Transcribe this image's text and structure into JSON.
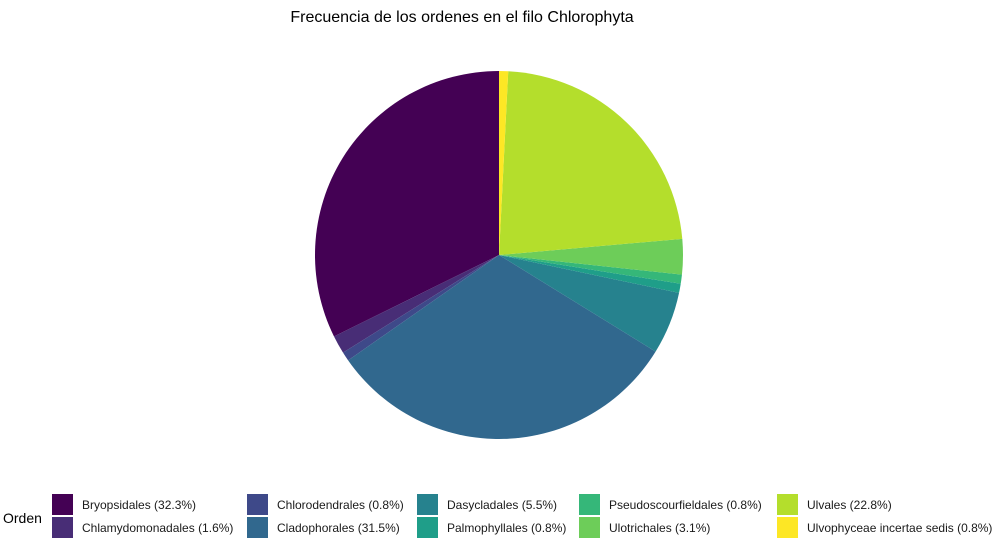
{
  "chart_data": {
    "type": "pie",
    "title": "Frecuencia de los ordenes en el filo Chlorophyta",
    "legend_title": "Orden",
    "legend_position": "bottom",
    "grid": false,
    "start": "top",
    "direction": "counterclockwise",
    "slices": [
      {
        "label": "Bryopsidales (32.3%)",
        "value": 32.3,
        "color": "#440154"
      },
      {
        "label": "Chlamydomonadales (1.6%)",
        "value": 1.6,
        "color": "#482D76"
      },
      {
        "label": "Chlorodendrales (0.8%)",
        "value": 0.8,
        "color": "#3E4989"
      },
      {
        "label": "Cladophorales (31.5%)",
        "value": 31.5,
        "color": "#31688E"
      },
      {
        "label": "Dasycladales (5.5%)",
        "value": 5.5,
        "color": "#26828E"
      },
      {
        "label": "Palmophyllales (0.8%)",
        "value": 0.8,
        "color": "#1F9E89"
      },
      {
        "label": "Pseudoscourfieldales (0.8%)",
        "value": 0.8,
        "color": "#35B779"
      },
      {
        "label": "Ulotrichales (3.1%)",
        "value": 3.1,
        "color": "#6DCD59"
      },
      {
        "label": "Ulvales (22.8%)",
        "value": 22.8,
        "color": "#B4DE2C"
      },
      {
        "label": "Ulvophyceae incertae sedis (0.8%)",
        "value": 0.8,
        "color": "#FDE725"
      }
    ]
  }
}
